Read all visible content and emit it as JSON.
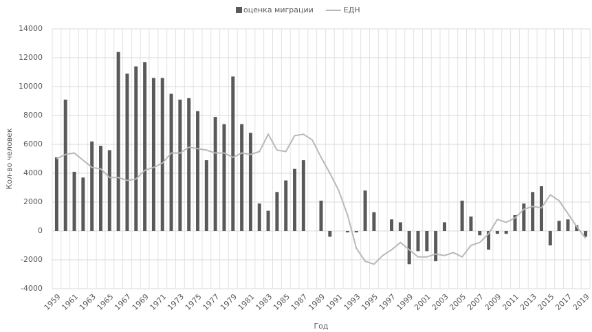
{
  "chart_data": {
    "type": "bar_line",
    "x_label": "Год",
    "y_label": "Кол-во человек",
    "categories": [
      "1959",
      null,
      "1961",
      null,
      "1963",
      null,
      "1965",
      null,
      "1967",
      null,
      "1969",
      null,
      "1971",
      null,
      "1973",
      null,
      "1975",
      null,
      "1977",
      null,
      "1979",
      null,
      "1981",
      null,
      "1983",
      null,
      "1985",
      null,
      "1987",
      null,
      "1989",
      null,
      "1991",
      null,
      "1993",
      null,
      "1995",
      null,
      "1997",
      null,
      "1999",
      null,
      "2001",
      null,
      "2003",
      null,
      "2005",
      null,
      "2007",
      null,
      "2009",
      null,
      "2011",
      null,
      "2013",
      null,
      "2015",
      null,
      "2017",
      null,
      "2019"
    ],
    "series": [
      {
        "name": "оценка миграции",
        "type": "bar",
        "color": "#595959",
        "values": [
          5100,
          9100,
          4100,
          3700,
          6200,
          5900,
          5600,
          12400,
          10900,
          11400,
          11700,
          10600,
          10600,
          9500,
          9100,
          9200,
          8300,
          4900,
          7900,
          7400,
          10700,
          7400,
          6800,
          1900,
          1400,
          2700,
          3500,
          4300,
          4900,
          0,
          2100,
          -400,
          0,
          -100,
          -100,
          2800,
          1300,
          0,
          800,
          600,
          -2300,
          -1400,
          -1400,
          -2100,
          600,
          0,
          2100,
          1000,
          -300,
          -1300,
          -200,
          -200,
          1100,
          1900,
          2700,
          3100,
          -1000,
          700,
          800,
          400,
          -400
        ]
      },
      {
        "name": "ЕДН",
        "type": "line",
        "color": "#b8b8b8",
        "values": [
          5000,
          5300,
          5400,
          4900,
          4400,
          4300,
          3700,
          3700,
          3500,
          3600,
          4200,
          4400,
          4700,
          5400,
          5400,
          5800,
          5700,
          5600,
          5400,
          5400,
          5100,
          5400,
          5300,
          5500,
          6700,
          5600,
          5500,
          6600,
          6700,
          6300,
          5100,
          4000,
          2800,
          1100,
          -1200,
          -2100,
          -2300,
          -1700,
          -1300,
          -800,
          -1300,
          -1800,
          -1800,
          -1600,
          -1700,
          -1500,
          -1800,
          -1000,
          -800,
          -200,
          800,
          600,
          900,
          1500,
          1700,
          1600,
          2500,
          2100,
          1200,
          300,
          -500
        ]
      }
    ],
    "ylim": [
      -4000,
      14000
    ],
    "yticks": [
      -4000,
      -2000,
      0,
      2000,
      4000,
      6000,
      8000,
      10000,
      12000,
      14000
    ],
    "grid": true,
    "legend": "top"
  }
}
